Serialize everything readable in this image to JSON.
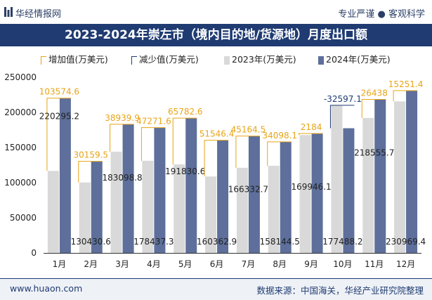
{
  "header": {
    "brand": "华经情报网",
    "slogan": "专业严谨 ● 客观科学",
    "title": "2023-2024年崇左市（境内目的地/货源地）月度出口额"
  },
  "legend": {
    "increase": "增加值(万美元)",
    "decrease": "减少值(万美元)",
    "y2023": "2023年(万美元)",
    "y2024": "2024年(万美元)"
  },
  "footer": {
    "url": "www.huaon.com",
    "source": "数据来源：中国海关，华经产业研究院整理"
  },
  "colors": {
    "bar2023": "#d9d9d9",
    "bar2024": "#5d6f9a",
    "increase": "#e8a417",
    "decrease": "#1f3b72",
    "titlebar": "#1f3b72"
  },
  "chart_data": {
    "type": "bar",
    "categories": [
      "1月",
      "2月",
      "3月",
      "4月",
      "5月",
      "6月",
      "7月",
      "8月",
      "9月",
      "10月",
      "11月",
      "12月"
    ],
    "series": [
      {
        "name": "2023年(万美元)",
        "values": [
          116720.6,
          100271.1,
          144158.9,
          131165.8,
          126048.0,
          108816.5,
          121168.2,
          124046.4,
          167762.1,
          210085.3,
          192117.7,
          215718.0
        ]
      },
      {
        "name": "2024年(万美元)",
        "values": [
          220295.2,
          130430.6,
          183098.8,
          178437.3,
          191830.6,
          160362.9,
          166332.7,
          158144.5,
          169946.1,
          177488.2,
          218555.7,
          230969.4
        ]
      }
    ],
    "change_labels": [
      "103574.6",
      "30159.5",
      "38939.9",
      "47271.6",
      "65782.6",
      "51546.4",
      "45164.5",
      "34098.1",
      "2184",
      "-32597.1",
      "26438",
      "15251.4"
    ],
    "value_labels_2024": [
      "220295.2",
      "130430.6",
      "183098.8",
      "178437.3",
      "191830.6",
      "160362.9",
      "166332.7",
      "158144.5",
      "169946.1",
      "177488.2",
      "218555.7",
      "230969.4"
    ],
    "yticks": [
      "0",
      "50000",
      "100000",
      "150000",
      "200000",
      "250000"
    ],
    "ylim": [
      0,
      250000
    ],
    "grid": false
  }
}
